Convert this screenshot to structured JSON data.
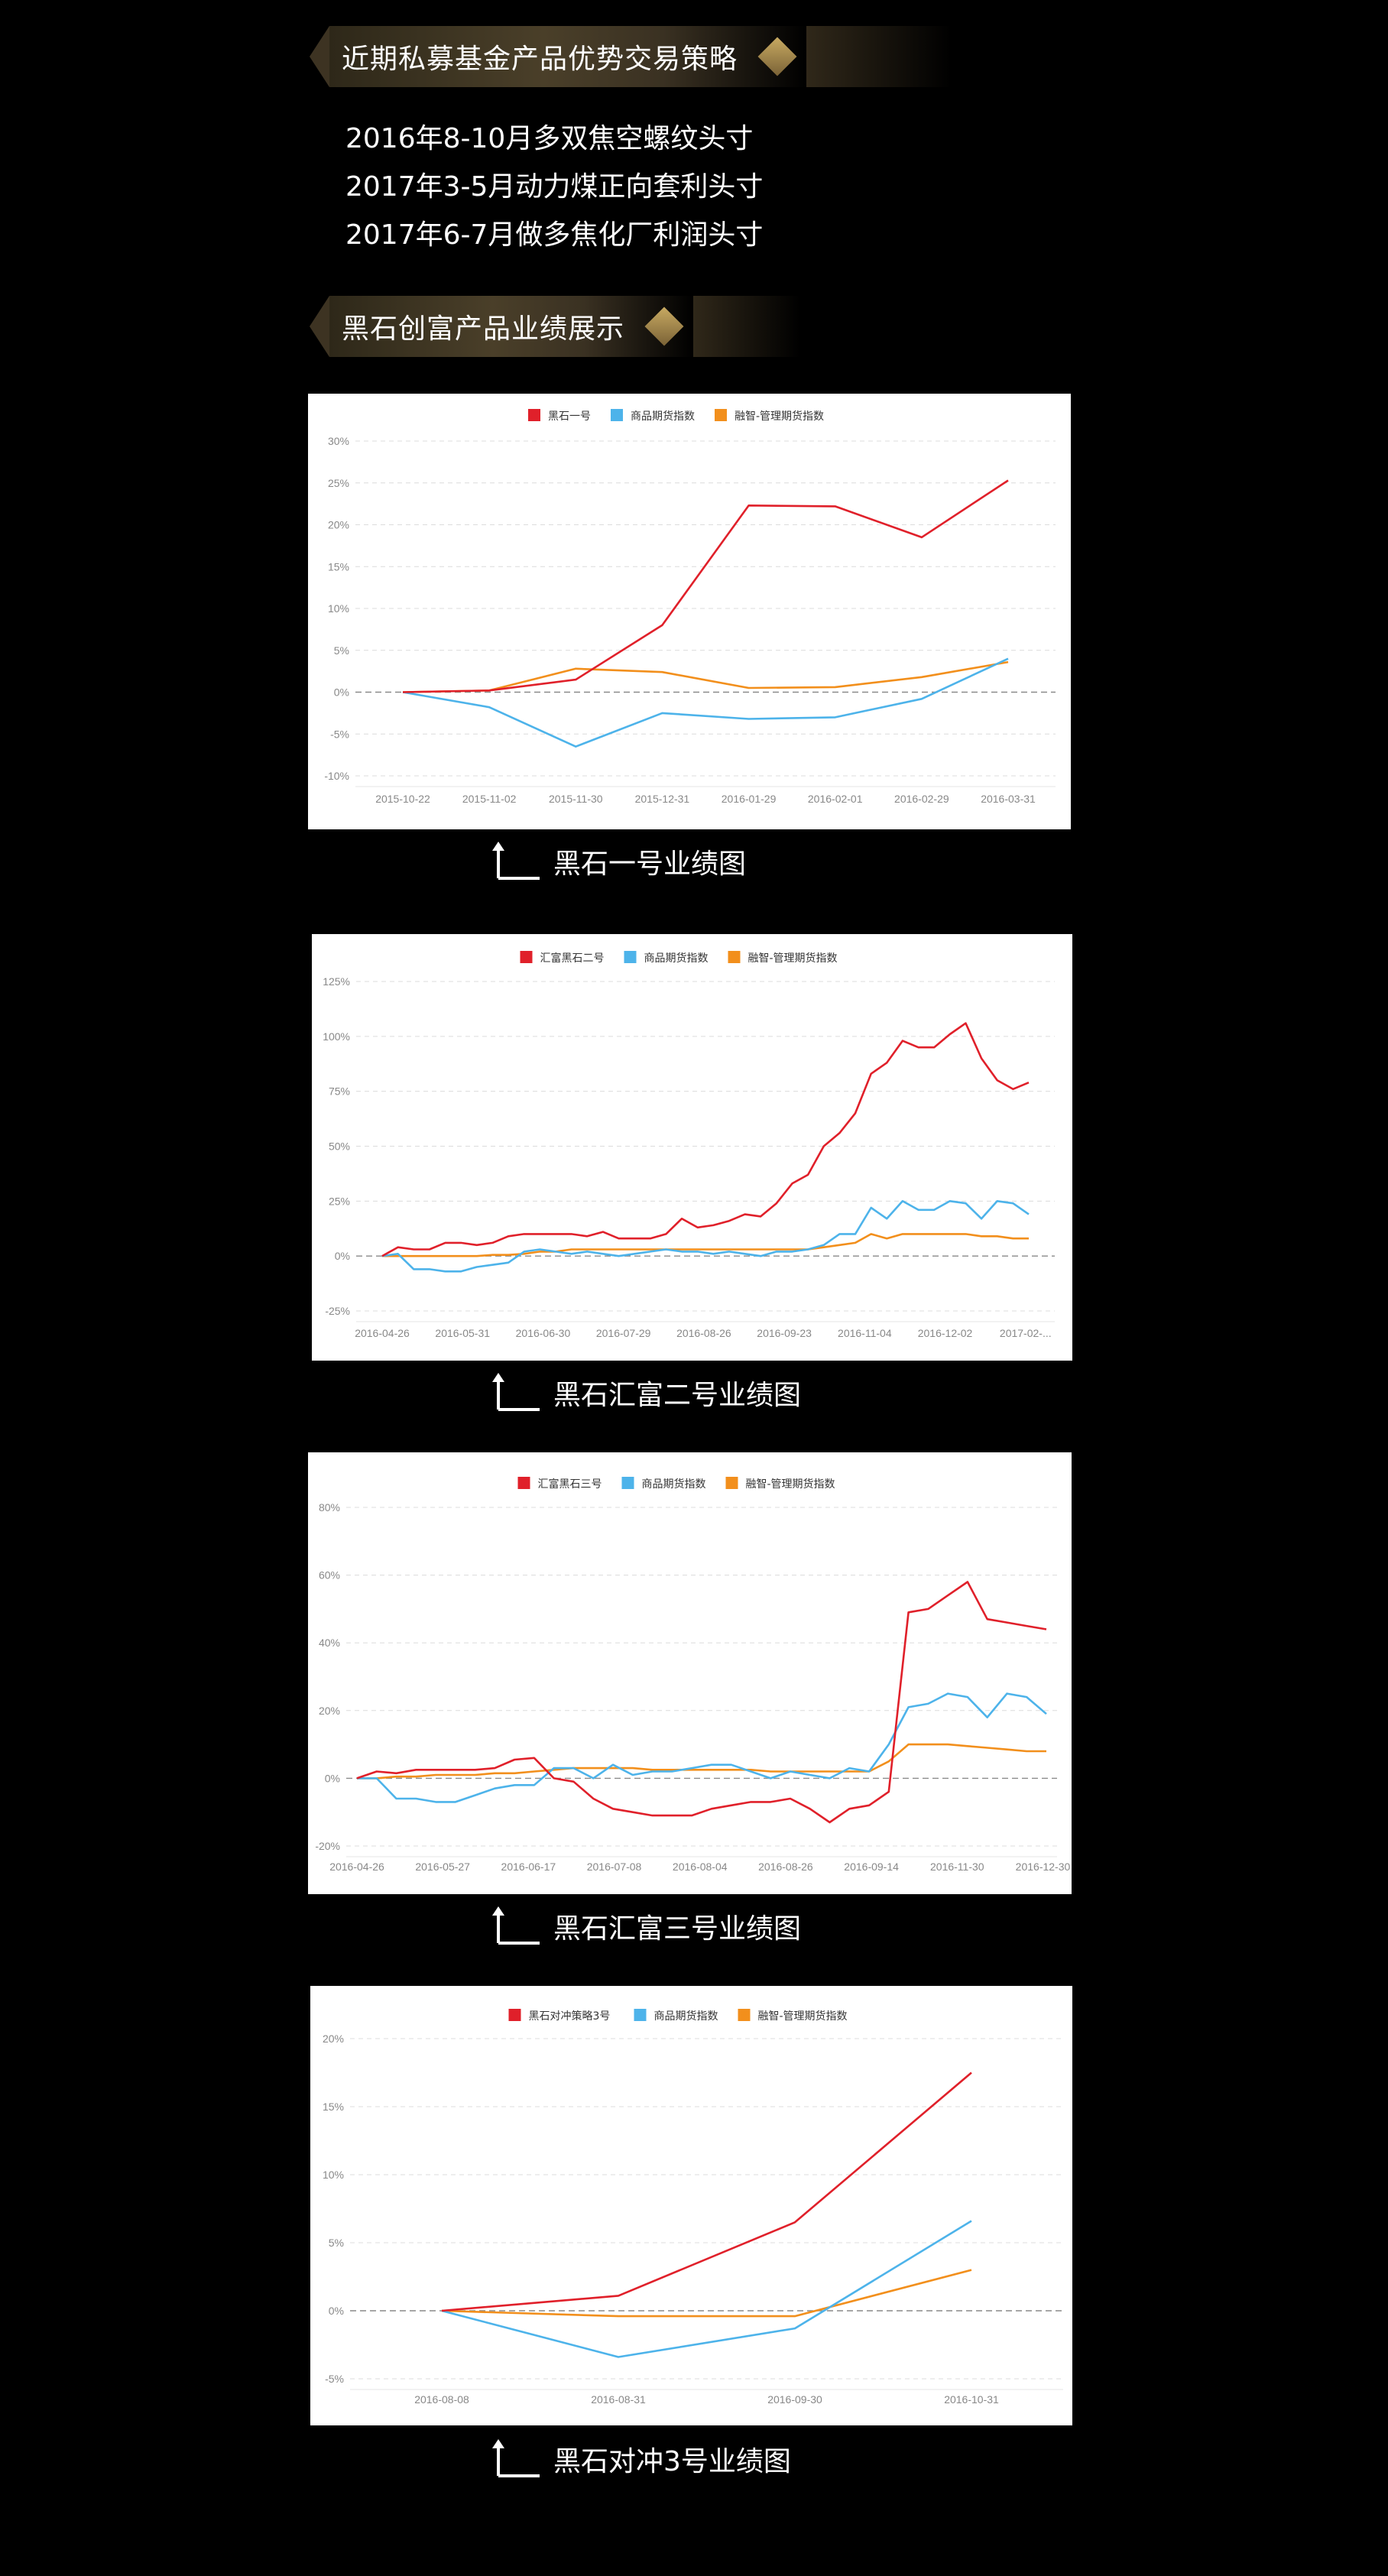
{
  "section1": {
    "title": "近期私募基金产品优势交易策略"
  },
  "strategies": [
    "2016年8-10月多双焦空螺纹头寸",
    "2017年3-5月动力煤正向套利头寸",
    "2017年6-7月做多焦化厂利润头寸"
  ],
  "section2": {
    "title": "黑石创富产品业绩展示"
  },
  "colors": {
    "red": "#e0202a",
    "blue": "#4db3ea",
    "orange": "#f28f1c",
    "gold": "#b89a55"
  },
  "captions": [
    "黑石一号业绩图",
    "黑石汇富二号业绩图",
    "黑石汇富三号业绩图",
    "黑石对冲3号业绩图"
  ],
  "chart_data": [
    {
      "type": "line",
      "legend_position": "top-center",
      "grid": true,
      "ylim": [
        -10,
        30
      ],
      "yticks": [
        "30%",
        "25%",
        "20%",
        "15%",
        "10%",
        "5%",
        "0%",
        "-5%",
        "-10%"
      ],
      "x": [
        "2015-10-22",
        "2015-11-02",
        "2015-11-30",
        "2015-12-31",
        "2016-01-29",
        "2016-02-01",
        "2016-02-29",
        "2016-03-31"
      ],
      "series": [
        {
          "name": "黑石一号",
          "color": "#e0202a",
          "values": [
            0,
            0.2,
            1.5,
            8,
            22.3,
            22.2,
            18.5,
            25.3
          ]
        },
        {
          "name": "商品期货指数",
          "color": "#4db3ea",
          "values": [
            0,
            -1.8,
            -6.5,
            -2.5,
            -3.2,
            -3.0,
            -0.8,
            4.0
          ]
        },
        {
          "name": "融智-管理期货指数",
          "color": "#f28f1c",
          "values": [
            0,
            0.2,
            2.8,
            2.4,
            0.5,
            0.6,
            1.8,
            3.6
          ]
        }
      ]
    },
    {
      "type": "line",
      "legend_position": "top-center",
      "grid": true,
      "ylim": [
        -25,
        125
      ],
      "yticks": [
        "125%",
        "100%",
        "75%",
        "50%",
        "25%",
        "0%",
        "-25%"
      ],
      "x_tick_labels": [
        "2016-04-26",
        "2016-05-31",
        "2016-06-30",
        "2016-07-29",
        "2016-08-26",
        "2016-09-23",
        "2016-11-04",
        "2016-12-02",
        "2017-02-..."
      ],
      "series": [
        {
          "name": "汇富黑石二号",
          "color": "#e0202a",
          "values": [
            0,
            4,
            3,
            3,
            6,
            6,
            5,
            6,
            9,
            10,
            10,
            10,
            10,
            9,
            11,
            8,
            8,
            8,
            10,
            17,
            13,
            14,
            16,
            19,
            18,
            24,
            33,
            37,
            50,
            56,
            65,
            83,
            88,
            98,
            95,
            95,
            101,
            106,
            90,
            80,
            76,
            79
          ]
        },
        {
          "name": "商品期货指数",
          "color": "#4db3ea",
          "values": [
            0,
            1,
            -6,
            -6,
            -7,
            -7,
            -5,
            -4,
            -3,
            2,
            3,
            2,
            1,
            2,
            1,
            0,
            1,
            2,
            3,
            2,
            2,
            1,
            2,
            1,
            0,
            2,
            2,
            3,
            5,
            10,
            10,
            22,
            17,
            25,
            21,
            21,
            25,
            24,
            17,
            25,
            24,
            19
          ]
        },
        {
          "name": "融智-管理期货指数",
          "color": "#f28f1c",
          "values": [
            0,
            0,
            0,
            0,
            0,
            0,
            0,
            0.5,
            0.5,
            1,
            2,
            2,
            3,
            3,
            3,
            3,
            3,
            3,
            3,
            3,
            3,
            3,
            3,
            3,
            3,
            3,
            3,
            3,
            4,
            5,
            6,
            10,
            8,
            10,
            10,
            10,
            10,
            10,
            9,
            9,
            8,
            8
          ]
        }
      ]
    },
    {
      "type": "line",
      "legend_position": "top-center",
      "grid": true,
      "ylim": [
        -20,
        80
      ],
      "yticks": [
        "80%",
        "60%",
        "40%",
        "20%",
        "0%",
        "-20%"
      ],
      "x_tick_labels": [
        "2016-04-26",
        "2016-05-27",
        "2016-06-17",
        "2016-07-08",
        "2016-08-04",
        "2016-08-26",
        "2016-09-14",
        "2016-11-30",
        "2016-12-30"
      ],
      "series": [
        {
          "name": "汇富黑石三号",
          "color": "#e0202a",
          "values": [
            0,
            2,
            1.5,
            2.5,
            2.5,
            2.5,
            2.5,
            3,
            5.5,
            6,
            0,
            -1,
            -6,
            -9,
            -10,
            -11,
            -11,
            -11,
            -9,
            -8,
            -7,
            -7,
            -6,
            -9,
            -13,
            -9,
            -8,
            -4,
            49,
            50,
            54,
            58,
            47,
            46,
            45,
            44
          ]
        },
        {
          "name": "商品期货指数",
          "color": "#4db3ea",
          "values": [
            0,
            0,
            -6,
            -6,
            -7,
            -7,
            -5,
            -3,
            -2,
            -2,
            3,
            3,
            0,
            4,
            1,
            2,
            2,
            3,
            4,
            4,
            2,
            0,
            2,
            1,
            0,
            3,
            2,
            10,
            21,
            22,
            25,
            24,
            18,
            25,
            24,
            19
          ]
        },
        {
          "name": "融智-管理期货指数",
          "color": "#f28f1c",
          "values": [
            0,
            0,
            0.5,
            0.5,
            1,
            1,
            1,
            1.5,
            1.5,
            2,
            2.5,
            3,
            3,
            3,
            3,
            2.5,
            2.5,
            2.5,
            2.5,
            2.5,
            2.5,
            2,
            2,
            2,
            2,
            2,
            2,
            5,
            10,
            10,
            10,
            9.5,
            9,
            8.5,
            8,
            8
          ]
        }
      ]
    },
    {
      "type": "line",
      "legend_position": "top-center",
      "grid": true,
      "ylim": [
        -5,
        20
      ],
      "yticks": [
        "20%",
        "15%",
        "10%",
        "5%",
        "0%",
        "-5%"
      ],
      "x": [
        "2016-08-08",
        "2016-08-31",
        "2016-09-30",
        "2016-10-31"
      ],
      "series": [
        {
          "name": "黑石对冲策略3号",
          "color": "#e0202a",
          "values": [
            0,
            1.1,
            6.5,
            17.5
          ]
        },
        {
          "name": "商品期货指数",
          "color": "#4db3ea",
          "values": [
            0,
            -3.4,
            -1.3,
            6.6
          ]
        },
        {
          "name": "融智-管理期货指数",
          "color": "#f28f1c",
          "values": [
            0,
            -0.4,
            -0.4,
            3.0
          ]
        }
      ]
    }
  ]
}
